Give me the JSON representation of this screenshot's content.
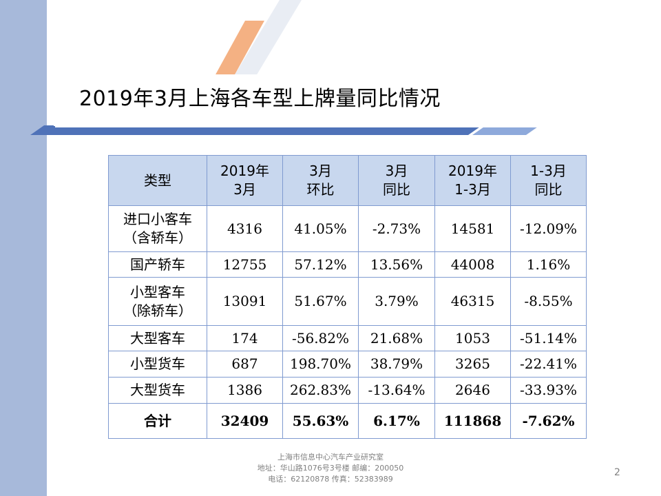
{
  "slide": {
    "title": "2019年3月上海各车型上牌量同比情况",
    "page_number": "2",
    "colors": {
      "side_panel": "#a7b9da",
      "accent_orange": "#f4b183",
      "accent_blue": "#4f72b8",
      "header_fill": "#c8d7ee",
      "border": "#7f9ad0"
    }
  },
  "table": {
    "headers": [
      [
        "类型"
      ],
      [
        "2019年",
        "3月"
      ],
      [
        "3月",
        "环比"
      ],
      [
        "3月",
        "同比"
      ],
      [
        "2019年",
        "1-3月"
      ],
      [
        "1-3月",
        "同比"
      ]
    ],
    "rows": [
      {
        "type": [
          "进口小客车",
          "（含轿车）"
        ],
        "cells": [
          "4316",
          "41.05%",
          "-2.73%",
          "14581",
          "-12.09%"
        ]
      },
      {
        "type": [
          "国产轿车"
        ],
        "cells": [
          "12755",
          "57.12%",
          "13.56%",
          "44008",
          "1.16%"
        ]
      },
      {
        "type": [
          "小型客车",
          "（除轿车）"
        ],
        "cells": [
          "13091",
          "51.67%",
          "3.79%",
          "46315",
          "-8.55%"
        ]
      },
      {
        "type": [
          "大型客车"
        ],
        "cells": [
          "174",
          "-56.82%",
          "21.68%",
          "1053",
          "-51.14%"
        ]
      },
      {
        "type": [
          "小型货车"
        ],
        "cells": [
          "687",
          "198.70%",
          "38.79%",
          "3265",
          "-22.41%"
        ]
      },
      {
        "type": [
          "大型货车"
        ],
        "cells": [
          "1386",
          "262.83%",
          "-13.64%",
          "2646",
          "-33.93%"
        ]
      }
    ],
    "total": {
      "type": "合计",
      "cells": [
        "32409",
        "55.63%",
        "6.17%",
        "111868",
        "-7.62%"
      ]
    }
  },
  "footer": {
    "line1": "上海市信息中心汽车产业研究室",
    "line2": "地址：华山路1076号3号楼    邮编：200050",
    "line3": "电话：62120878  传真：52383989"
  }
}
